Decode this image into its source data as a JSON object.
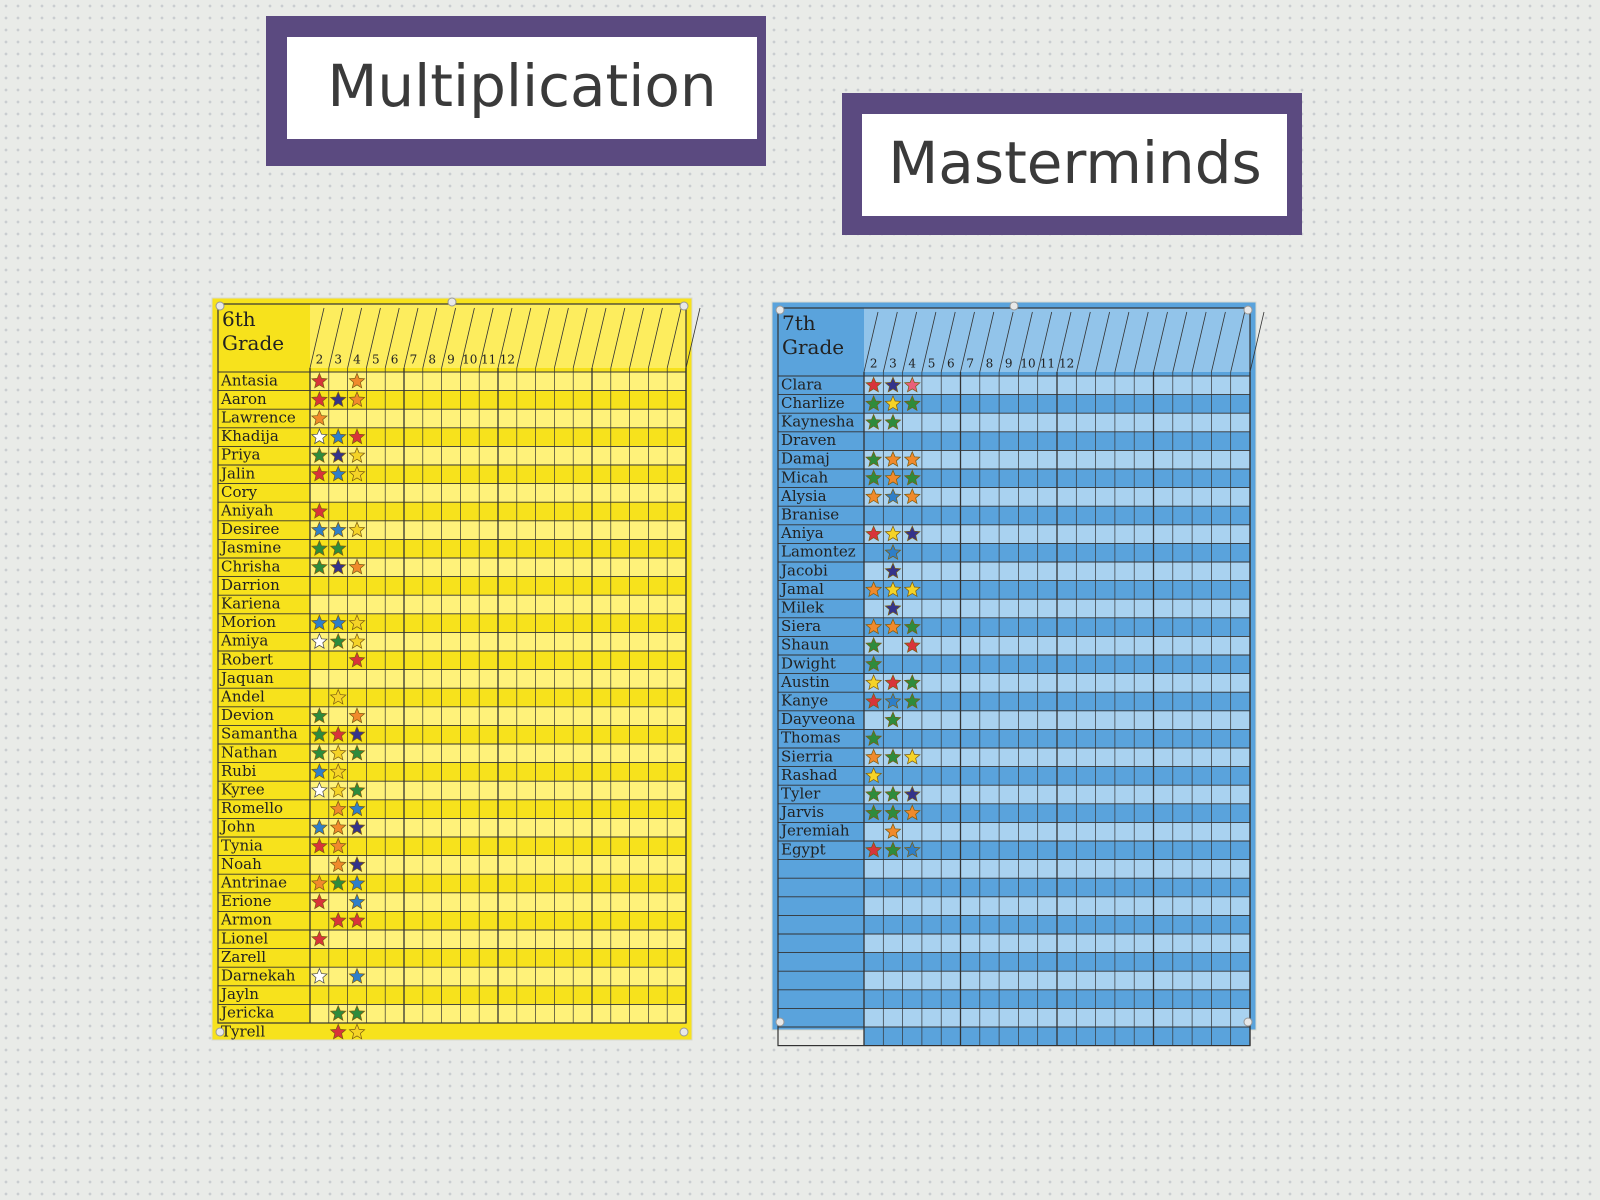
{
  "banner": {
    "words": [
      "Multiplication",
      "Masterminds"
    ]
  },
  "charts": [
    {
      "grade": [
        "6th",
        "Grade"
      ],
      "paper": "#f7e21c",
      "stripe": "#fff27a",
      "column_labels": [
        "2",
        "3",
        "4",
        "5",
        "6",
        "7",
        "8",
        "9",
        "10",
        "11",
        "12"
      ],
      "students": [
        {
          "name": "Antasia",
          "stars": [
            "#d8343a",
            null,
            "#f08a2c"
          ]
        },
        {
          "name": "Aaron",
          "stars": [
            "#d8343a",
            "#34338a",
            "#f08a2c"
          ]
        },
        {
          "name": "Lawrence",
          "stars": [
            "#f08a2c"
          ]
        },
        {
          "name": "Khadija",
          "stars": [
            "#ffffff",
            "#2f7fc8",
            "#d8343a"
          ]
        },
        {
          "name": "Priya",
          "stars": [
            "#2e8b3c",
            "#34338a",
            "#f5d327"
          ]
        },
        {
          "name": "Jalin",
          "stars": [
            "#d8343a",
            "#2f7fc8",
            "#f5d327"
          ]
        },
        {
          "name": "Cory",
          "stars": []
        },
        {
          "name": "Aniyah",
          "stars": [
            "#d8343a"
          ]
        },
        {
          "name": "Desiree",
          "stars": [
            "#2f7fc8",
            "#2f7fc8",
            "#f5d327"
          ]
        },
        {
          "name": "Jasmine",
          "stars": [
            "#2e8b3c",
            "#2e8b3c"
          ]
        },
        {
          "name": "Chrisha",
          "stars": [
            "#2e8b3c",
            "#34338a",
            "#f08a2c"
          ]
        },
        {
          "name": "Darrion",
          "stars": []
        },
        {
          "name": "Kariena",
          "stars": []
        },
        {
          "name": "Morion",
          "stars": [
            "#2f7fc8",
            "#2f7fc8",
            "#f5d327"
          ]
        },
        {
          "name": "Amiya",
          "stars": [
            "#ffffff",
            "#2e8b3c",
            "#f5d327"
          ]
        },
        {
          "name": "Robert",
          "stars": [
            null,
            null,
            "#d8343a"
          ]
        },
        {
          "name": "Jaquan",
          "stars": []
        },
        {
          "name": "Andel",
          "stars": [
            null,
            "#f5d327"
          ]
        },
        {
          "name": "Devion",
          "stars": [
            "#2e8b3c",
            null,
            "#f08a2c"
          ]
        },
        {
          "name": "Samantha",
          "stars": [
            "#2e8b3c",
            "#d8343a",
            "#34338a"
          ]
        },
        {
          "name": "Nathan",
          "stars": [
            "#2e8b3c",
            "#f5d327",
            "#2e8b3c"
          ]
        },
        {
          "name": "Rubi",
          "stars": [
            "#2f7fc8",
            "#f5d327"
          ]
        },
        {
          "name": "Kyree",
          "stars": [
            "#ffffff",
            "#f5d327",
            "#2e8b3c"
          ]
        },
        {
          "name": "Romello",
          "stars": [
            null,
            "#f08a2c",
            "#2f7fc8"
          ]
        },
        {
          "name": "John",
          "stars": [
            "#2f7fc8",
            "#f08a2c",
            "#34338a"
          ]
        },
        {
          "name": "Tynia",
          "stars": [
            "#d8343a",
            "#f08a2c"
          ]
        },
        {
          "name": "Noah",
          "stars": [
            null,
            "#f08a2c",
            "#34338a"
          ]
        },
        {
          "name": "Antrinae",
          "stars": [
            "#f08a2c",
            "#2e8b3c",
            "#2f7fc8"
          ]
        },
        {
          "name": "Erione",
          "stars": [
            "#d8343a",
            null,
            "#2f7fc8"
          ]
        },
        {
          "name": "Armon",
          "stars": [
            null,
            "#d8343a",
            "#d8343a"
          ]
        },
        {
          "name": "Lionel",
          "stars": [
            "#d8343a"
          ]
        },
        {
          "name": "Zarell",
          "stars": []
        },
        {
          "name": "Darnekah",
          "stars": [
            "#ffffff",
            null,
            "#2f7fc8"
          ]
        },
        {
          "name": "Jayln",
          "stars": []
        },
        {
          "name": "Jericka",
          "stars": [
            null,
            "#2e8b3c",
            "#2e8b3c"
          ]
        },
        {
          "name": "Tyrell",
          "stars": [
            null,
            "#d8343a",
            "#f5d327"
          ]
        }
      ]
    },
    {
      "grade": [
        "7th",
        "Grade"
      ],
      "paper": "#5aa3dc",
      "stripe": "#a9d2f0",
      "column_labels": [
        "2",
        "3",
        "4",
        "5",
        "6",
        "7",
        "8",
        "9",
        "10",
        "11",
        "12"
      ],
      "students": [
        {
          "name": "Clara",
          "stars": [
            "#d8343a",
            "#34338a",
            "#e8607a"
          ]
        },
        {
          "name": "Charlize",
          "stars": [
            "#2e8b3c",
            "#f5d327",
            "#2e8b3c"
          ]
        },
        {
          "name": "Kaynesha",
          "stars": [
            "#2e8b3c",
            "#2e8b3c"
          ]
        },
        {
          "name": "Draven",
          "stars": []
        },
        {
          "name": "Damaj",
          "stars": [
            "#2e8b3c",
            "#f08a2c",
            "#f08a2c"
          ]
        },
        {
          "name": "Micah",
          "stars": [
            "#2e8b3c",
            "#f08a2c",
            "#2e8b3c"
          ]
        },
        {
          "name": "Alysia",
          "stars": [
            "#f08a2c",
            "#2f7fc8",
            "#f08a2c"
          ]
        },
        {
          "name": "Branise",
          "stars": []
        },
        {
          "name": "Aniya",
          "stars": [
            "#d8343a",
            "#f5d327",
            "#34338a"
          ]
        },
        {
          "name": "Lamontez",
          "stars": [
            null,
            "#2f7fc8"
          ]
        },
        {
          "name": "Jacobi",
          "stars": [
            null,
            "#34338a"
          ]
        },
        {
          "name": "Jamal",
          "stars": [
            "#f08a2c",
            "#f5d327",
            "#f5d327"
          ]
        },
        {
          "name": "Milek",
          "stars": [
            null,
            "#34338a"
          ]
        },
        {
          "name": "Siera",
          "stars": [
            "#f08a2c",
            "#f08a2c",
            "#2e8b3c"
          ]
        },
        {
          "name": "Shaun",
          "stars": [
            "#2e8b3c",
            null,
            "#d8343a"
          ]
        },
        {
          "name": "Dwight",
          "stars": [
            "#2e8b3c"
          ]
        },
        {
          "name": "Austin",
          "stars": [
            "#f5d327",
            "#d8343a",
            "#2e8b3c"
          ]
        },
        {
          "name": "Kanye",
          "stars": [
            "#d8343a",
            "#2f7fc8",
            "#2e8b3c"
          ]
        },
        {
          "name": "Dayveona",
          "stars": [
            null,
            "#2e8b3c"
          ]
        },
        {
          "name": "Thomas",
          "stars": [
            "#2e8b3c"
          ]
        },
        {
          "name": "Sierria",
          "stars": [
            "#f08a2c",
            "#2e8b3c",
            "#f5d327"
          ]
        },
        {
          "name": "Rashad",
          "stars": [
            "#f5d327"
          ]
        },
        {
          "name": "Tyler",
          "stars": [
            "#2e8b3c",
            "#2e8b3c",
            "#34338a"
          ]
        },
        {
          "name": "Jarvis",
          "stars": [
            "#2e8b3c",
            "#2e8b3c",
            "#f08a2c"
          ]
        },
        {
          "name": "Jeremiah",
          "stars": [
            null,
            "#f08a2c"
          ]
        },
        {
          "name": "Egypt",
          "stars": [
            "#d8343a",
            "#2e8b3c",
            "#2f7fc8"
          ]
        }
      ]
    }
  ]
}
